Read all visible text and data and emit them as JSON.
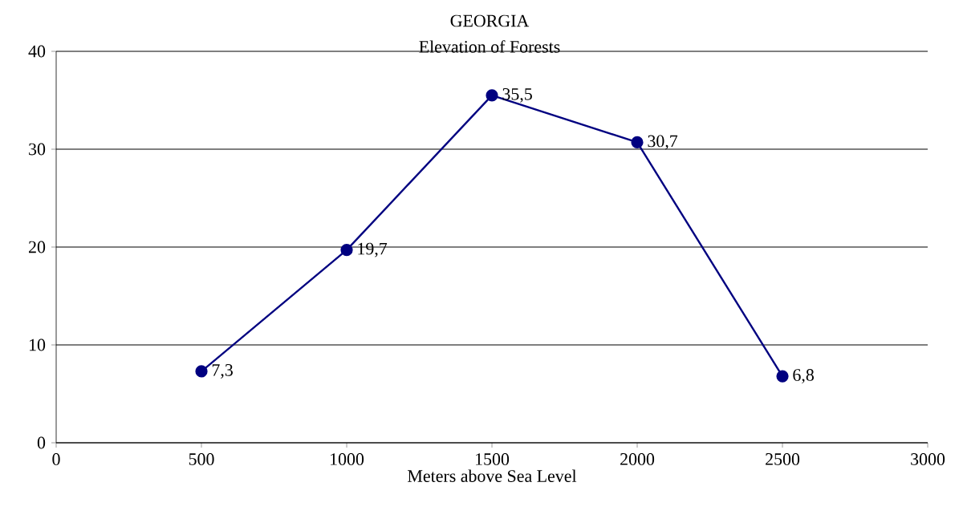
{
  "chart_data": {
    "type": "line",
    "title": "GEORGIA",
    "subtitle": "Elevation of Forests",
    "xlabel": "Meters above Sea Level",
    "x": [
      500,
      1000,
      1500,
      2000,
      2500
    ],
    "series": [
      {
        "color": "#000080",
        "values": [
          7.3,
          19.7,
          35.5,
          30.7,
          6.8
        ],
        "value_labels": [
          "7,3",
          "19,7",
          "35,5",
          "30,7",
          "6,8"
        ]
      }
    ],
    "xlim": [
      0,
      3000
    ],
    "xticks": [
      0,
      500,
      1000,
      1500,
      2000,
      2500,
      3000
    ],
    "ylim": [
      0,
      40
    ],
    "yticks": [
      0,
      10,
      20,
      30,
      40
    ],
    "grid": "y",
    "marker": "circle",
    "line_style": "solid"
  }
}
